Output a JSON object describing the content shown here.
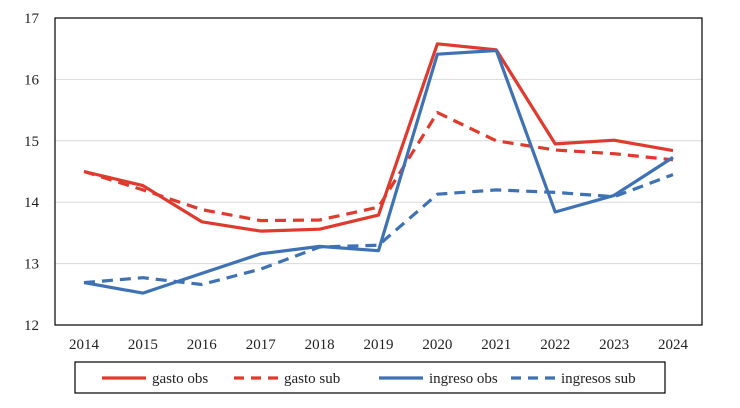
{
  "chart_data": {
    "type": "line",
    "x": [
      "2014",
      "2015",
      "2016",
      "2017",
      "2018",
      "2019",
      "2020",
      "2021",
      "2022",
      "2023",
      "2024"
    ],
    "ylim": [
      12,
      17
    ],
    "yticks": [
      "12",
      "13",
      "14",
      "15",
      "16",
      "17"
    ],
    "grid": true,
    "legend_position": "bottom",
    "series": [
      {
        "name": "gasto obs",
        "color": "#e03a2f",
        "dash": "solid",
        "values": [
          14.5,
          14.27,
          13.68,
          13.53,
          13.56,
          13.79,
          16.58,
          16.48,
          14.95,
          15.01,
          14.84
        ]
      },
      {
        "name": "gasto sub",
        "color": "#e03a2f",
        "dash": "dashed",
        "values": [
          14.5,
          14.2,
          13.88,
          13.7,
          13.71,
          13.92,
          15.46,
          15.0,
          14.85,
          14.79,
          14.69
        ]
      },
      {
        "name": "ingreso obs",
        "color": "#3f72b5",
        "dash": "solid",
        "values": [
          12.69,
          12.52,
          12.84,
          13.16,
          13.28,
          13.21,
          16.41,
          16.47,
          13.84,
          14.11,
          14.73
        ]
      },
      {
        "name": "ingresos sub",
        "color": "#3f72b5",
        "dash": "dashed",
        "values": [
          12.69,
          12.77,
          12.66,
          12.91,
          13.27,
          13.3,
          14.13,
          14.2,
          14.16,
          14.09,
          14.45
        ]
      }
    ]
  }
}
